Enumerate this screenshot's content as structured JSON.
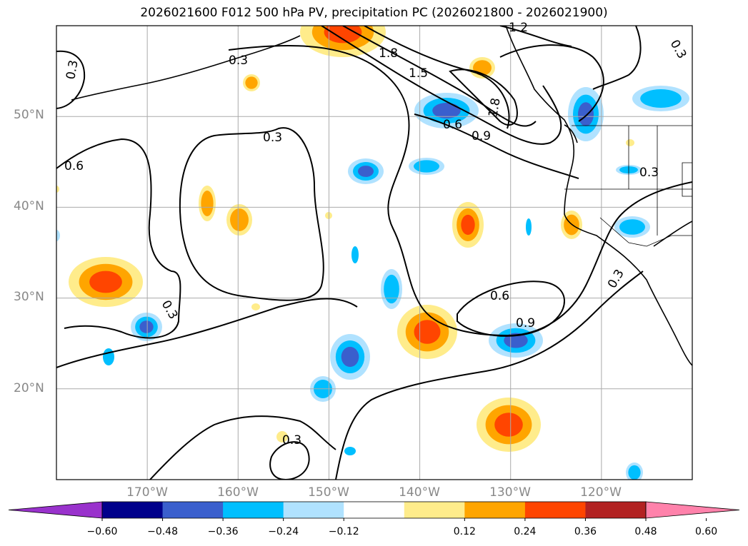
{
  "title": "2026021600 F012 500 hPa PV, precipitation PC (2026021800 - 2026021900)",
  "map": {
    "projection": "PlateCarree",
    "extent": {
      "lon_min": -180,
      "lon_max": -110,
      "lat_min": 10,
      "lat_max": 60
    },
    "lat_ticks": [
      {
        "value": 50,
        "label": "50°N"
      },
      {
        "value": 40,
        "label": "40°N"
      },
      {
        "value": 30,
        "label": "30°N"
      },
      {
        "value": 20,
        "label": "20°N"
      }
    ],
    "lon_ticks": [
      {
        "value": -170,
        "label": "170°W"
      },
      {
        "value": -160,
        "label": "160°W"
      },
      {
        "value": -150,
        "label": "150°W"
      },
      {
        "value": -140,
        "label": "140°W"
      },
      {
        "value": -130,
        "label": "130°W"
      },
      {
        "value": -120,
        "label": "120°W"
      }
    ],
    "contour_labels": [
      "0.3",
      "0.6",
      "0.9",
      "1.2",
      "1.5",
      "1.8"
    ]
  },
  "colorbar": {
    "extend": "both",
    "colors": [
      "#9932cc",
      "#00008b",
      "#3a5fcd",
      "#00bfff",
      "#b0e2ff",
      "#ffffff",
      "#ffec8b",
      "#ffa500",
      "#ff4500",
      "#b22222",
      "#ff82ab"
    ],
    "tick_labels": [
      "−0.60",
      "−0.48",
      "−0.36",
      "−0.24",
      "−0.12",
      "0.12",
      "0.24",
      "0.36",
      "0.48",
      "0.60"
    ]
  },
  "chart_data": {
    "type": "contour",
    "title": "2026021600 F012 500 hPa PV, precipitation PC (2026021800 - 2026021900)",
    "contour_variable": "500 hPa PV",
    "contour_levels": [
      0.3,
      0.6,
      0.9,
      1.2,
      1.5,
      1.8
    ],
    "fill_variable": "precipitation PC",
    "fill_levels": [
      -0.6,
      -0.48,
      -0.36,
      -0.24,
      -0.12,
      0.12,
      0.24,
      0.36,
      0.48,
      0.6
    ],
    "xlim": [
      -180,
      -110
    ],
    "ylim": [
      10,
      60
    ]
  }
}
